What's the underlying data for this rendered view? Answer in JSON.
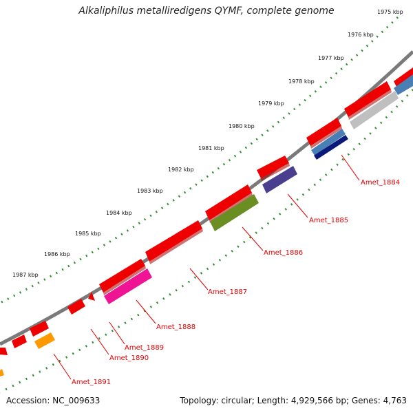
{
  "title": "Alkaliphilus metalliredigens QYMF, complete genome",
  "footer": {
    "accession": "Accession: NC_009633",
    "summary": "Topology: circular; Length: 4,929,566 bp; Genes: 4,763"
  },
  "ticks": [
    "1975 kbp",
    "1976 kbp",
    "1977 kbp",
    "1978 kbp",
    "1979 kbp",
    "1980 kbp",
    "1981 kbp",
    "1982 kbp",
    "1983 kbp",
    "1984 kbp",
    "1985 kbp",
    "1986 kbp",
    "1987 kbp"
  ],
  "gene_labels": [
    "Amet_1884",
    "Amet_1885",
    "Amet_1886",
    "Amet_1887",
    "Amet_1888",
    "Amet_1889",
    "Amet_1890",
    "Amet_1891"
  ],
  "colors": {
    "backbone": "#7a7a7a",
    "tick_ring": "#2f8f2f",
    "cds_forward": "#ee0000",
    "label": "#e00000",
    "amet_1884": "#4a7fb5",
    "amet_1884_inner": "#0a1a7a",
    "amet_1885": "#4a3f8f",
    "amet_1886": "#6b8e23",
    "amet_1888": "#ee1493",
    "amet_1891": "#ff9900",
    "gray_feature": "#bfbfbf"
  }
}
